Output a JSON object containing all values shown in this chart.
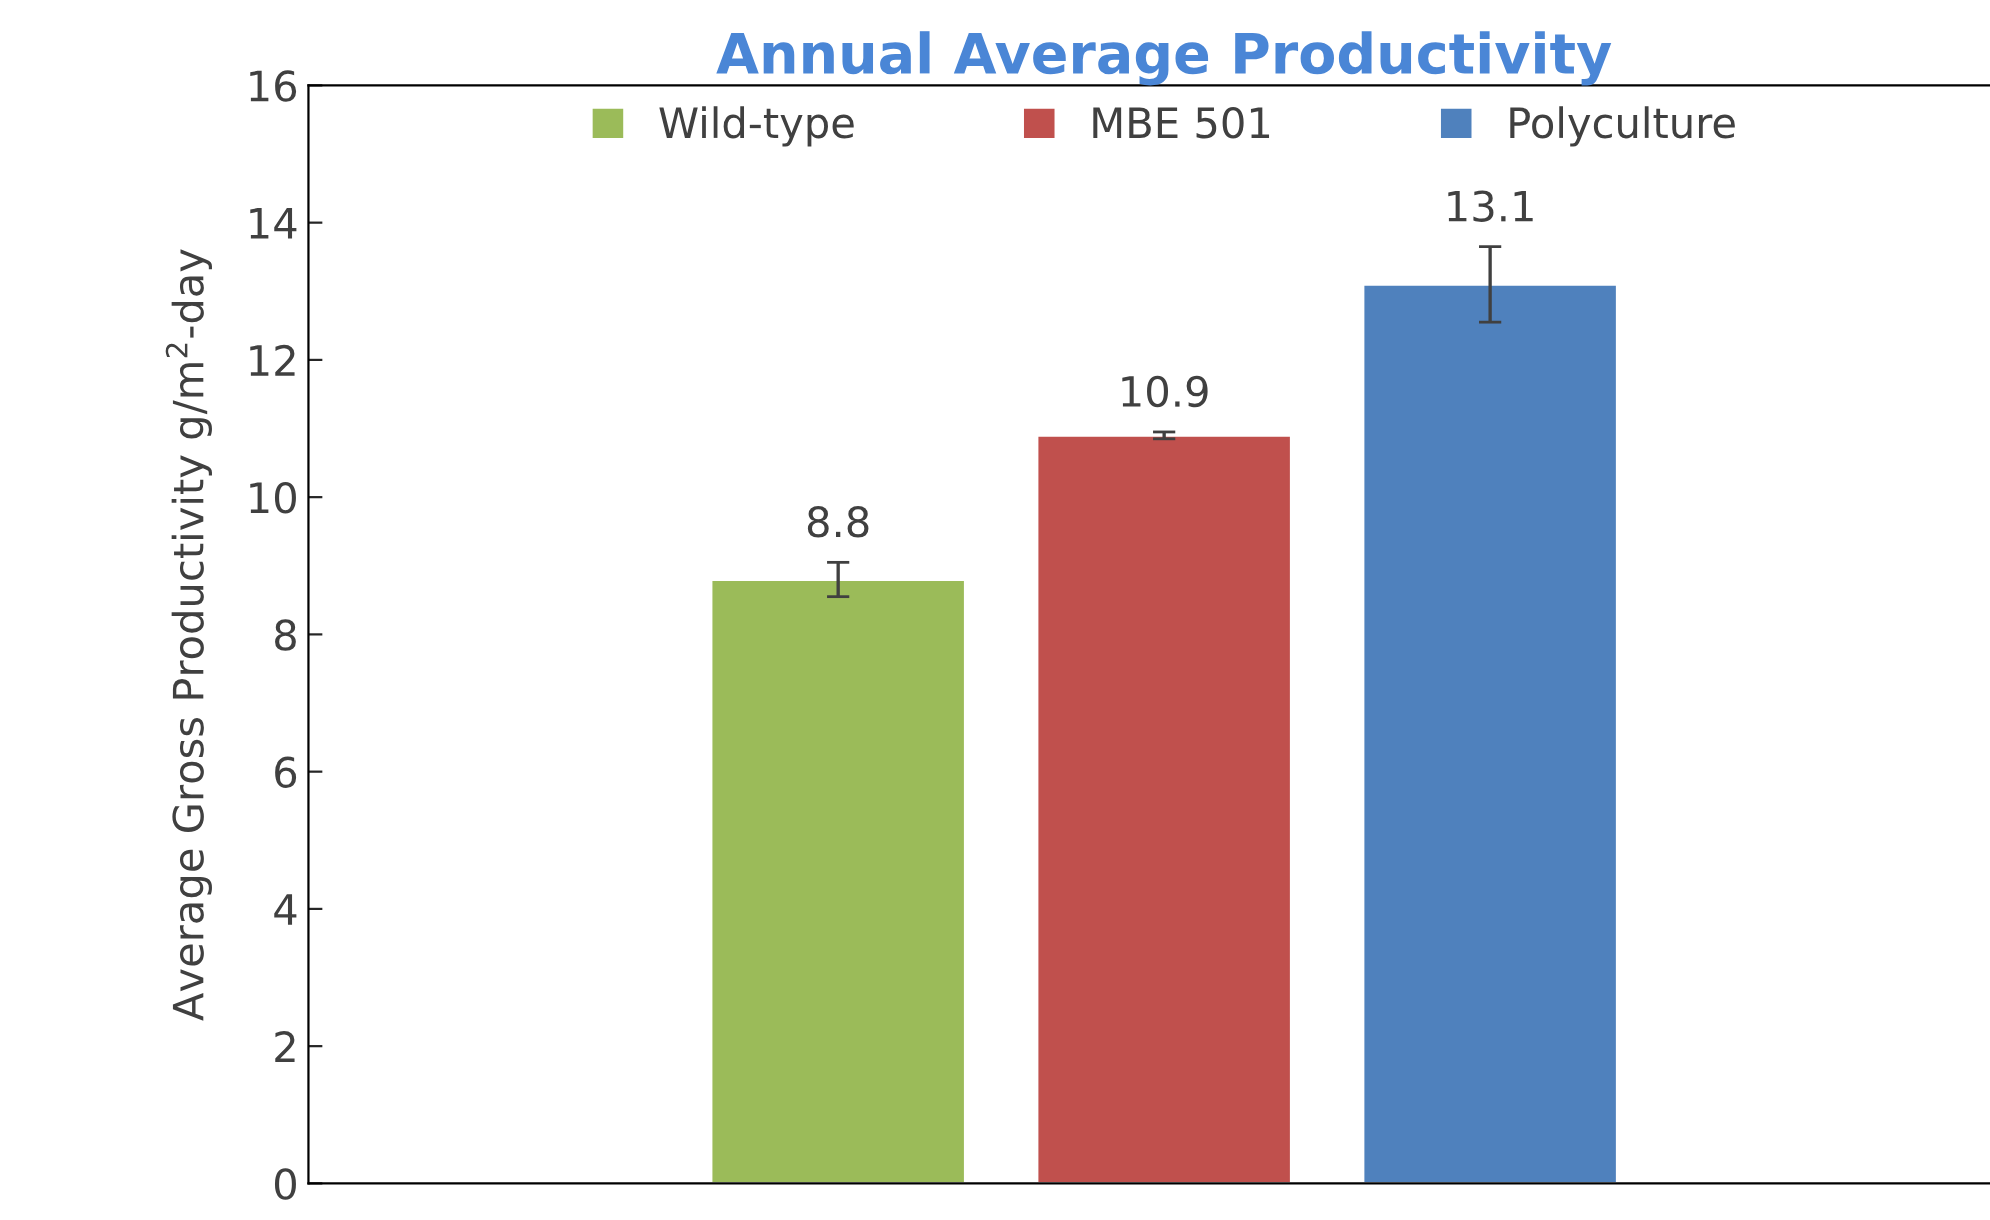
{
  "chart_data": {
    "type": "bar",
    "title": "Annual Average Productivity",
    "ylabel": "Average Gross Productivity g/m$^{2}$-day",
    "categories": [
      null
    ],
    "series": [
      {
        "name": "Wild-type",
        "color": "#9bbb59",
        "values": [
          8.8
        ],
        "errors": [
          0.25
        ]
      },
      {
        "name": "MBE 501",
        "color": "#c0504d",
        "values": [
          10.9
        ],
        "errors": [
          0.05
        ]
      },
      {
        "name": "Polyculture",
        "color": "#4f81bd",
        "values": [
          13.1
        ],
        "errors": [
          0.55
        ]
      }
    ],
    "ylim": [
      0,
      16
    ],
    "yticks": [
      0,
      2,
      4,
      6,
      8,
      10,
      12,
      14,
      16
    ],
    "data_labels": true,
    "legend": "top",
    "grid": false
  }
}
